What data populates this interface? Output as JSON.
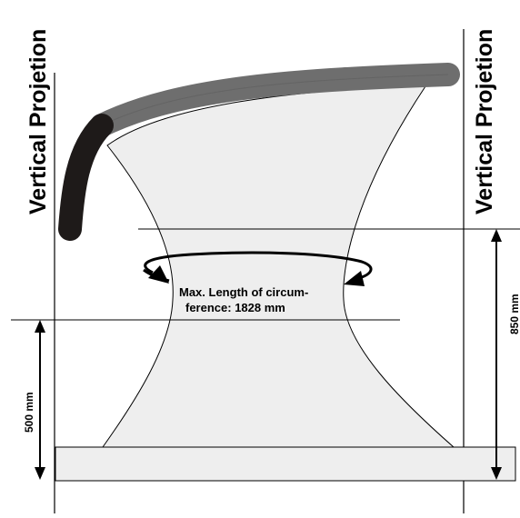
{
  "labels": {
    "vertical_left": "Vertical Projetion",
    "vertical_right": "Vertical Projetion",
    "circumference_line1": "Max. Length of circum-",
    "circumference_line2": "ference: 1828 mm",
    "dim_500": "500 mm",
    "dim_850": "850 mm"
  },
  "colors": {
    "line": "#000000",
    "fill_light": "#eeeeee",
    "base_fill": "#eeeeee",
    "arm_gray": "#6e6e6e",
    "arm_dark": "#1e1a19"
  }
}
